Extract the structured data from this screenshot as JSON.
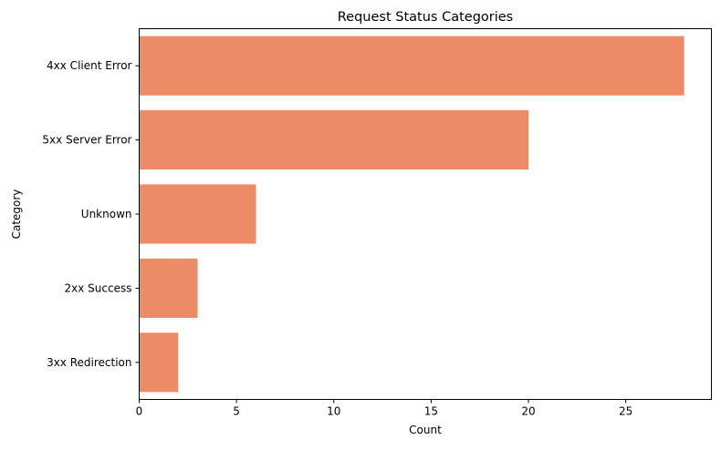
{
  "chart_data": {
    "type": "bar",
    "orientation": "horizontal",
    "title": "Request Status Categories",
    "xlabel": "Count",
    "ylabel": "Category",
    "categories": [
      "4xx Client Error",
      "5xx Server Error",
      "Unknown",
      "2xx Success",
      "3xx Redirection"
    ],
    "values": [
      28,
      20,
      6,
      3,
      2
    ],
    "xlim": [
      0,
      29.4
    ],
    "xticks": [
      0,
      5,
      10,
      15,
      20,
      25
    ],
    "grid": false,
    "colors": {
      "bar": "#ec8b66",
      "axis": "#000000"
    }
  }
}
